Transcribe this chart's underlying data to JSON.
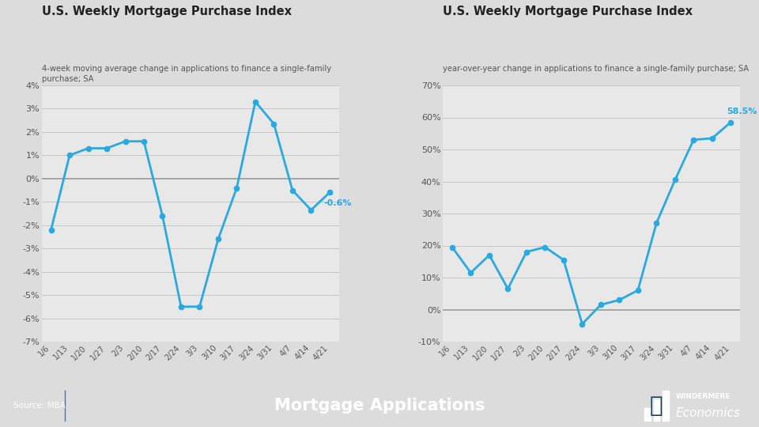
{
  "left_title": "U.S. Weekly Mortgage Purchase Index",
  "left_subtitle": "4-week moving average change in applications to finance a single-family\npurchase; SA",
  "right_title": "U.S. Weekly Mortgage Purchase Index",
  "right_subtitle": "year-over-year change in applications to finance a single-family purchase; SA",
  "x_labels": [
    "1/6",
    "1/13",
    "1/20",
    "1/27",
    "2/3",
    "2/10",
    "2/17",
    "2/24",
    "3/3",
    "3/10",
    "3/17",
    "3/24",
    "3/31",
    "4/7",
    "4/14",
    "4/21"
  ],
  "left_y": [
    -2.2,
    1.0,
    1.3,
    1.3,
    1.6,
    1.6,
    -1.6,
    -5.5,
    -5.5,
    -2.6,
    -0.4,
    3.3,
    2.35,
    -0.5,
    -1.35,
    -0.6
  ],
  "left_ylim": [
    -7,
    4
  ],
  "left_yticks": [
    -7,
    -6,
    -5,
    -4,
    -3,
    -2,
    -1,
    0,
    1,
    2,
    3,
    4
  ],
  "right_y": [
    19.5,
    11.5,
    17.0,
    6.5,
    18.0,
    19.5,
    15.5,
    -4.5,
    1.5,
    3.0,
    6.0,
    27.0,
    40.5,
    53.0,
    53.5,
    58.5
  ],
  "right_ylim": [
    -10,
    70
  ],
  "right_yticks": [
    -10,
    0,
    10,
    20,
    30,
    40,
    50,
    60,
    70
  ],
  "left_last_label": "-0.6%",
  "right_last_label": "58.5%",
  "line_color": "#29A9E1",
  "dot_color": "#29A9E1",
  "bg_color": "#DCDCDC",
  "chart_bg": "#E8E8E8",
  "grid_color": "#C0C0C0",
  "zero_line_color": "#999999",
  "footer_bg": "#1B3A5C",
  "footer_text": "Mortgage Applications",
  "footer_source": "Source: MBA",
  "title_color": "#222222",
  "subtitle_color": "#555555",
  "label_color": "#555555"
}
